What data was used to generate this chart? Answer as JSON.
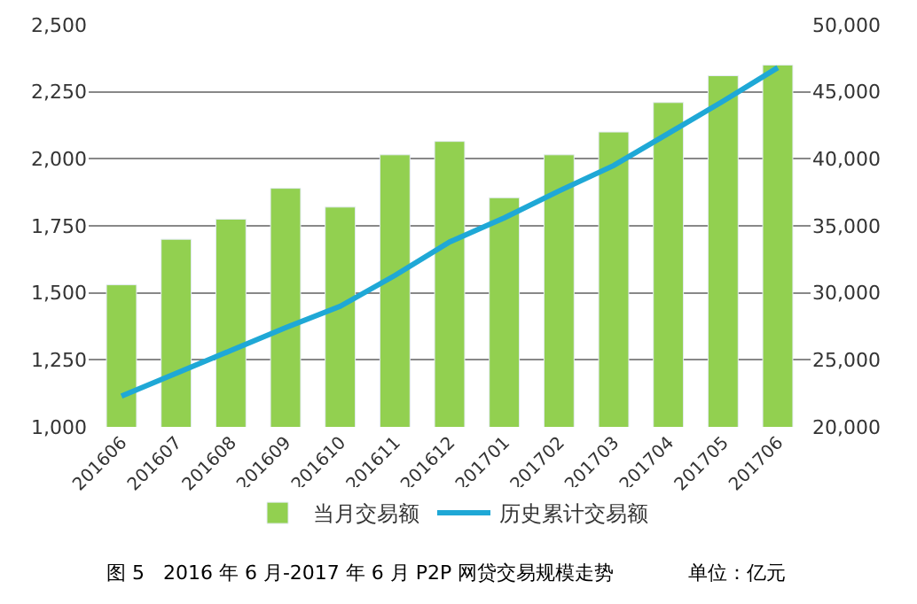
{
  "chart_data": {
    "type": "bar",
    "categories": [
      "201606",
      "201607",
      "201608",
      "201609",
      "201610",
      "201611",
      "201612",
      "201701",
      "201702",
      "201703",
      "201704",
      "201705",
      "201706"
    ],
    "series": [
      {
        "name": "当月交易额",
        "color": "#92d050",
        "values": [
          1530,
          1700,
          1775,
          1890,
          1820,
          2015,
          2065,
          1855,
          2015,
          2100,
          2210,
          2310,
          2350
        ]
      },
      {
        "name": "历史累计交易额",
        "type": "line",
        "axis": "y2",
        "color": "#1fa8d6",
        "values": [
          22300,
          24000,
          25700,
          27400,
          29000,
          31300,
          33800,
          35600,
          37600,
          39500,
          41900,
          44300,
          46800
        ]
      }
    ],
    "ylim": [
      1000,
      2500
    ],
    "yticks": [
      {
        "value": 1000,
        "label": "1,000"
      },
      {
        "value": 1250,
        "label": "1,250"
      },
      {
        "value": 1500,
        "label": "1,500"
      },
      {
        "value": 1750,
        "label": "1,750"
      },
      {
        "value": 2000,
        "label": "2,000"
      },
      {
        "value": 2250,
        "label": "2,250"
      },
      {
        "value": 2500,
        "label": "2,500"
      }
    ],
    "y2lim": [
      20000,
      50000
    ],
    "y2ticks": [
      {
        "value": 20000,
        "label": "20,000"
      },
      {
        "value": 25000,
        "label": "25,000"
      },
      {
        "value": 30000,
        "label": "30,000"
      },
      {
        "value": 35000,
        "label": "35,000"
      },
      {
        "value": 40000,
        "label": "40,000"
      },
      {
        "value": 45000,
        "label": "45,000"
      },
      {
        "value": 50000,
        "label": "50,000"
      }
    ],
    "grid": "y",
    "legend": "bottom",
    "marker": "none",
    "line_style": "solid",
    "annotations": [
      "图 5   2016 年 6 月-2017 年 6 月 P2P 网贷交易规模走势",
      "单位：亿元"
    ]
  }
}
